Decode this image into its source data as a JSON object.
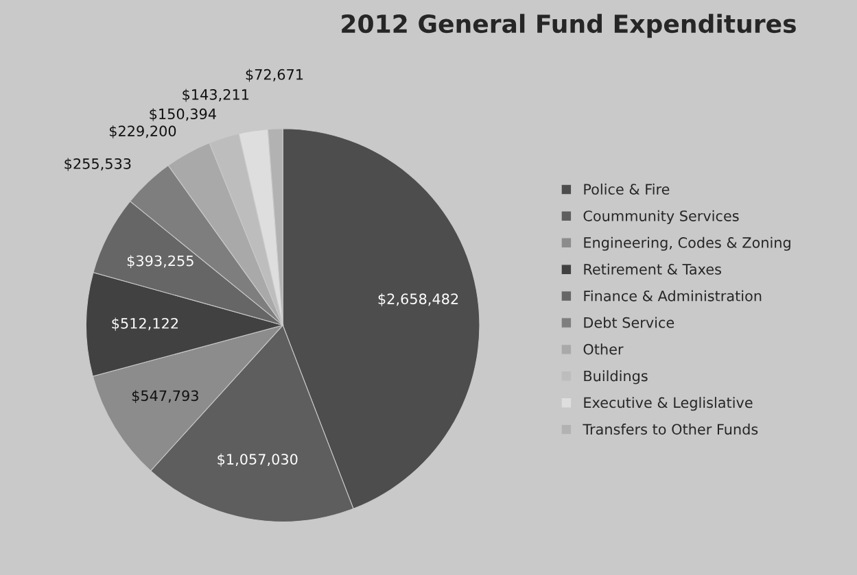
{
  "chart_data": {
    "type": "pie",
    "title": "2012 General Fund Expenditures",
    "categories": [
      "Police & Fire",
      "Coummunity Services",
      "Engineering, Codes & Zoning",
      "Retirement & Taxes",
      "Finance & Administration",
      "Debt Service",
      "Other",
      "Buildings",
      "Executive & Leglislative",
      "Transfers to Other Funds"
    ],
    "values": [
      2658482,
      1057030,
      547793,
      512122,
      393255,
      255533,
      229200,
      150394,
      143211,
      72671
    ],
    "value_labels": [
      "$2,658,482",
      "$1,057,030",
      "$547,793",
      "$512,122",
      "$393,255",
      "$255,533",
      "$229,200",
      "$150,394",
      "$143,211",
      "$72,671"
    ],
    "colors": [
      "#4d4d4d",
      "#5e5e5e",
      "#8c8c8c",
      "#414141",
      "#666666",
      "#7e7e7e",
      "#a9a9a9",
      "#bdbdbd",
      "#dedede",
      "#b2b2b2"
    ],
    "legend": "right"
  }
}
